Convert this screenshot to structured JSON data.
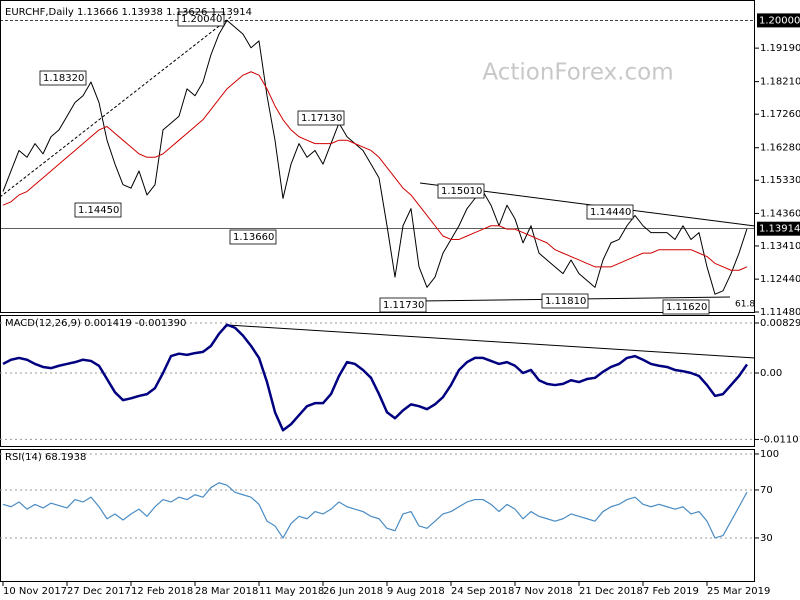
{
  "chart_data": [
    {
      "type": "line",
      "title": "EURCHF,Daily  1.13666 1.13938 1.13626 1.13914",
      "watermark": "ActionForex.com",
      "ylim": [
        1.1148,
        1.2045
      ],
      "yticks": [
        {
          "value": 1.1919,
          "label": "1.19190"
        },
        {
          "value": 1.1821,
          "label": "1.18210"
        },
        {
          "value": 1.1726,
          "label": "1.17260"
        },
        {
          "value": 1.1628,
          "label": "1.16280"
        },
        {
          "value": 1.1533,
          "label": "1.15330"
        },
        {
          "value": 1.1436,
          "label": "1.14360"
        },
        {
          "value": 1.1341,
          "label": "1.13410"
        },
        {
          "value": 1.1244,
          "label": "1.12440"
        },
        {
          "value": 1.1148,
          "label": "1.11480"
        }
      ],
      "grid": false,
      "level_line": {
        "value": 1.2,
        "label": "1.20000"
      },
      "last_price": {
        "value": 1.13914,
        "label": "1.13914"
      },
      "level_labels": [
        "1.20040",
        "1.18320",
        "1.17130",
        "1.15010",
        "1.14450",
        "1.14440",
        "1.13660",
        "1.11730",
        "1.11810",
        "1.11620"
      ],
      "note": "61.8",
      "series": [
        {
          "color": "#000000",
          "values": [
            1.15,
            1.156,
            1.162,
            1.16,
            1.164,
            1.161,
            1.166,
            1.168,
            1.172,
            1.176,
            1.178,
            1.182,
            1.176,
            1.165,
            1.158,
            1.152,
            1.151,
            1.156,
            1.149,
            1.152,
            1.168,
            1.17,
            1.172,
            1.18,
            1.178,
            1.182,
            1.19,
            1.196,
            1.2,
            1.198,
            1.196,
            1.192,
            1.194,
            1.178,
            1.165,
            1.148,
            1.158,
            1.164,
            1.16,
            1.162,
            1.158,
            1.164,
            1.17,
            1.166,
            1.164,
            1.162,
            1.158,
            1.154,
            1.14,
            1.125,
            1.14,
            1.145,
            1.128,
            1.122,
            1.125,
            1.132,
            1.136,
            1.14,
            1.145,
            1.148,
            1.15,
            1.146,
            1.14,
            1.146,
            1.142,
            1.135,
            1.14,
            1.132,
            1.13,
            1.128,
            1.126,
            1.13,
            1.126,
            1.124,
            1.122,
            1.13,
            1.135,
            1.136,
            1.14,
            1.143,
            1.14,
            1.138,
            1.138,
            1.138,
            1.136,
            1.14,
            1.136,
            1.138,
            1.128,
            1.12,
            1.121,
            1.126,
            1.132,
            1.13914
          ]
        },
        {
          "color": "#d00000",
          "values": [
            1.146,
            1.147,
            1.149,
            1.15,
            1.152,
            1.154,
            1.156,
            1.158,
            1.16,
            1.162,
            1.164,
            1.166,
            1.168,
            1.169,
            1.167,
            1.165,
            1.163,
            1.161,
            1.16,
            1.16,
            1.161,
            1.163,
            1.165,
            1.167,
            1.169,
            1.171,
            1.174,
            1.177,
            1.18,
            1.182,
            1.184,
            1.185,
            1.184,
            1.18,
            1.175,
            1.171,
            1.168,
            1.166,
            1.165,
            1.164,
            1.164,
            1.164,
            1.165,
            1.165,
            1.164,
            1.163,
            1.162,
            1.16,
            1.157,
            1.154,
            1.151,
            1.149,
            1.146,
            1.143,
            1.14,
            1.137,
            1.136,
            1.136,
            1.137,
            1.138,
            1.139,
            1.14,
            1.14,
            1.139,
            1.139,
            1.138,
            1.137,
            1.136,
            1.135,
            1.133,
            1.132,
            1.131,
            1.13,
            1.129,
            1.128,
            1.128,
            1.128,
            1.129,
            1.13,
            1.131,
            1.132,
            1.132,
            1.133,
            1.133,
            1.133,
            1.133,
            1.133,
            1.132,
            1.131,
            1.129,
            1.128,
            1.127,
            1.127,
            1.128
          ]
        }
      ]
    },
    {
      "type": "line",
      "title": "MACD(12,26,9) 0.001419 -0.001390",
      "ylim": [
        -0.01227,
        0.00945
      ],
      "yticks": [
        0.008292,
        {
          "value": 0,
          "label": "0.00"
        },
        -0.011015
      ],
      "grid": true,
      "series": [
        {
          "color": "#000080",
          "values": [
            0.0015,
            0.0022,
            0.0025,
            0.0022,
            0.0015,
            0.001,
            0.0008,
            0.0012,
            0.0015,
            0.0018,
            0.0022,
            0.002,
            0.0012,
            -0.001,
            -0.0032,
            -0.0045,
            -0.0042,
            -0.0038,
            -0.0035,
            -0.0025,
            0.0,
            0.0028,
            0.0032,
            0.003,
            0.0033,
            0.0035,
            0.0045,
            0.0065,
            0.008,
            0.0075,
            0.0062,
            0.0045,
            0.0025,
            -0.0015,
            -0.0065,
            -0.0095,
            -0.0085,
            -0.007,
            -0.0055,
            -0.005,
            -0.005,
            -0.0035,
            -0.0005,
            0.0018,
            0.0015,
            0.0005,
            -0.0008,
            -0.0035,
            -0.0065,
            -0.0075,
            -0.0062,
            -0.0052,
            -0.0055,
            -0.006,
            -0.0052,
            -0.004,
            -0.002,
            0.0005,
            0.0018,
            0.0025,
            0.0025,
            0.002,
            0.0015,
            0.0018,
            0.0012,
            0.0,
            0.0005,
            -0.0012,
            -0.0018,
            -0.002,
            -0.0018,
            -0.0012,
            -0.0015,
            -0.001,
            -0.0008,
            0.0002,
            0.001,
            0.0015,
            0.0025,
            0.0028,
            0.0022,
            0.0015,
            0.0012,
            0.001,
            0.0005,
            0.0003,
            0.0,
            -0.0005,
            -0.002,
            -0.0038,
            -0.0035,
            -0.002,
            -0.0005,
            0.001419
          ]
        }
      ]
    },
    {
      "type": "line",
      "title": "RSI(14) 68.1938",
      "ylim": [
        -6.7,
        103.3
      ],
      "yticks": [
        100,
        70,
        30
      ],
      "grid": true,
      "categories": [
        "10 Nov 2017",
        null,
        null,
        null,
        null,
        null,
        null,
        null,
        "27 Dec 2017",
        null,
        null,
        null,
        null,
        null,
        null,
        null,
        "12 Feb 2018",
        null,
        null,
        null,
        null,
        null,
        null,
        null,
        "28 Mar 2018",
        null,
        null,
        null,
        null,
        null,
        null,
        null,
        "11 May 2018",
        null,
        null,
        null,
        null,
        null,
        null,
        null,
        "26 Jun 2018",
        null,
        null,
        null,
        null,
        null,
        null,
        null,
        "9 Aug 2018",
        null,
        null,
        null,
        null,
        null,
        null,
        null,
        "24 Sep 2018",
        null,
        null,
        null,
        null,
        null,
        null,
        null,
        "7 Nov 2018",
        null,
        null,
        null,
        null,
        null,
        null,
        null,
        "21 Dec 2018",
        null,
        null,
        null,
        null,
        null,
        null,
        null,
        "7 Feb 2019",
        null,
        null,
        null,
        null,
        null,
        null,
        null,
        "25 Mar 2019",
        null,
        null,
        null,
        null,
        null
      ],
      "series": [
        {
          "color": "#4a8cc4",
          "values": [
            58,
            56,
            60,
            54,
            58,
            55,
            59,
            57,
            55,
            62,
            60,
            64,
            56,
            46,
            50,
            45,
            50,
            54,
            48,
            56,
            62,
            60,
            64,
            62,
            66,
            64,
            72,
            76,
            74,
            68,
            66,
            64,
            58,
            44,
            40,
            30,
            42,
            48,
            46,
            52,
            50,
            54,
            60,
            56,
            54,
            52,
            48,
            46,
            38,
            36,
            50,
            52,
            40,
            38,
            44,
            50,
            52,
            56,
            60,
            62,
            62,
            58,
            52,
            58,
            54,
            46,
            52,
            48,
            46,
            44,
            46,
            50,
            48,
            46,
            44,
            52,
            56,
            58,
            62,
            64,
            58,
            56,
            58,
            56,
            54,
            56,
            50,
            52,
            44,
            30,
            32,
            44,
            56,
            68.1938
          ]
        }
      ]
    }
  ]
}
